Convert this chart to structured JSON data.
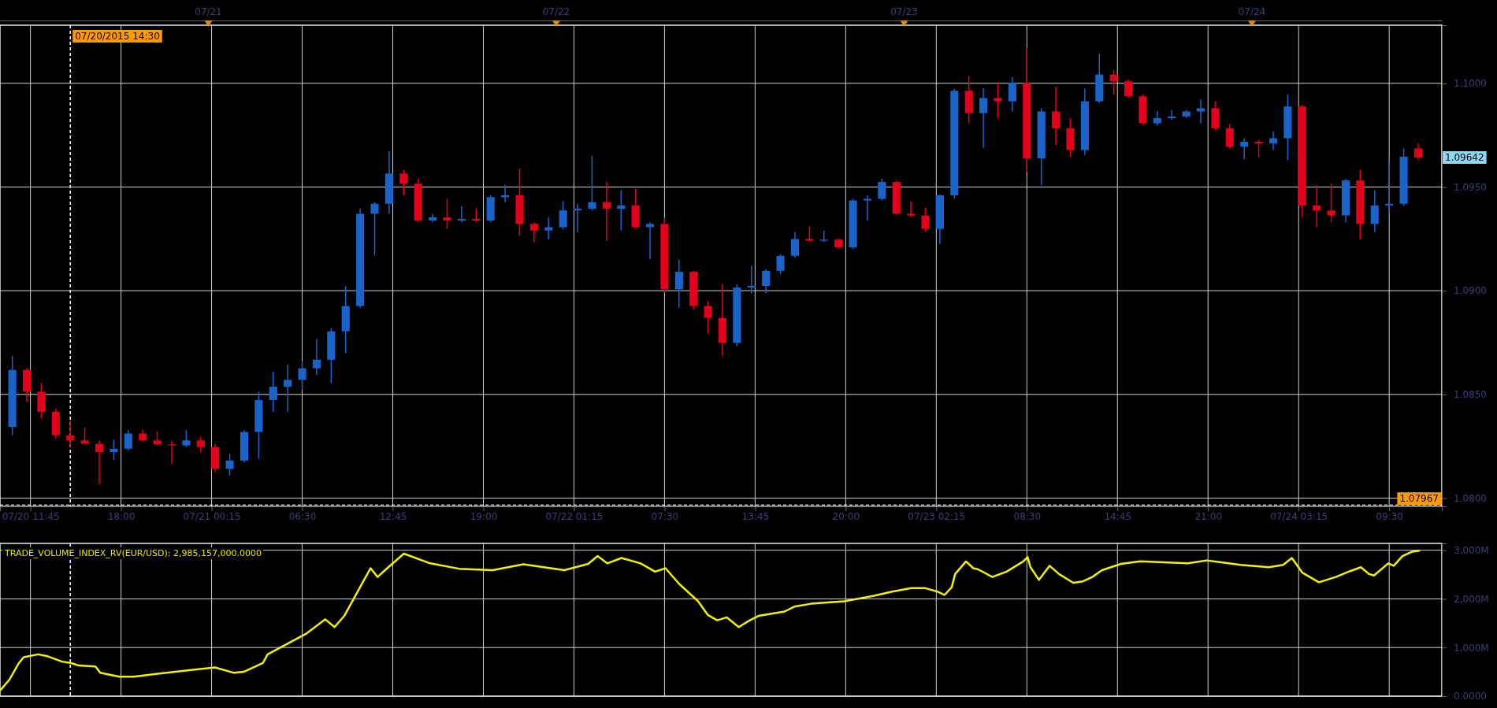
{
  "chart_data": [
    {
      "type": "candlestick",
      "x": [
        "2015-07-20T10:30",
        "2015-07-20T11:30",
        "2015-07-20T12:30",
        "2015-07-20T13:30",
        "2015-07-20T14:30",
        "2015-07-20T15:30",
        "2015-07-20T16:30",
        "2015-07-20T17:30",
        "2015-07-20T18:30",
        "2015-07-20T19:30",
        "2015-07-20T20:30",
        "2015-07-20T21:30",
        "2015-07-20T22:30",
        "2015-07-20T23:30",
        "2015-07-21T00:30",
        "2015-07-21T01:30",
        "2015-07-21T02:30",
        "2015-07-21T03:30",
        "2015-07-21T04:30",
        "2015-07-21T05:30",
        "2015-07-21T06:30",
        "2015-07-21T07:30",
        "2015-07-21T08:30",
        "2015-07-21T09:30",
        "2015-07-21T10:30",
        "2015-07-21T11:30",
        "2015-07-21T12:30",
        "2015-07-21T13:30",
        "2015-07-21T14:30",
        "2015-07-21T15:30",
        "2015-07-21T16:30",
        "2015-07-21T17:30",
        "2015-07-21T18:30",
        "2015-07-21T19:30",
        "2015-07-21T20:30",
        "2015-07-21T21:30",
        "2015-07-21T22:30",
        "2015-07-21T23:30",
        "2015-07-22T00:30",
        "2015-07-22T01:30",
        "2015-07-22T02:30",
        "2015-07-22T03:30",
        "2015-07-22T04:30",
        "2015-07-22T05:30",
        "2015-07-22T06:30",
        "2015-07-22T07:30",
        "2015-07-22T08:30",
        "2015-07-22T09:30",
        "2015-07-22T10:30",
        "2015-07-22T11:30",
        "2015-07-22T12:30",
        "2015-07-22T13:30",
        "2015-07-22T14:30",
        "2015-07-22T15:30",
        "2015-07-22T16:30",
        "2015-07-22T17:30",
        "2015-07-22T18:30",
        "2015-07-22T19:30",
        "2015-07-22T20:30",
        "2015-07-22T21:30",
        "2015-07-22T22:30",
        "2015-07-22T23:30",
        "2015-07-23T00:30",
        "2015-07-23T01:30",
        "2015-07-23T02:30",
        "2015-07-23T03:30",
        "2015-07-23T04:30",
        "2015-07-23T05:30",
        "2015-07-23T06:30",
        "2015-07-23T07:30",
        "2015-07-23T08:30",
        "2015-07-23T09:30",
        "2015-07-23T10:30",
        "2015-07-23T11:30",
        "2015-07-23T12:30",
        "2015-07-23T13:30",
        "2015-07-23T14:30",
        "2015-07-23T15:30",
        "2015-07-23T16:30",
        "2015-07-23T17:30",
        "2015-07-23T18:30",
        "2015-07-23T19:30",
        "2015-07-23T20:30",
        "2015-07-23T21:30",
        "2015-07-23T22:30",
        "2015-07-23T23:30",
        "2015-07-24T00:30",
        "2015-07-24T01:30",
        "2015-07-24T02:30",
        "2015-07-24T03:30",
        "2015-07-24T04:30",
        "2015-07-24T05:30",
        "2015-07-24T06:30",
        "2015-07-24T07:30",
        "2015-07-24T08:30",
        "2015-07-24T09:30",
        "2015-07-24T10:30",
        "2015-07-24T11:30"
      ],
      "series": [
        {
          "colors": [
            "#1a63c9",
            "#e2001a",
            "#e2001a",
            "#e2001a",
            "#e2001a",
            "#e2001a",
            "#e2001a",
            "#1a63c9",
            "#1a63c9",
            "#e2001a",
            "#e2001a",
            "#e2001a",
            "#1a63c9",
            "#e2001a",
            "#e2001a",
            "#1a63c9",
            "#1a63c9",
            "#1a63c9",
            "#1a63c9",
            "#1a63c9",
            "#1a63c9",
            "#1a63c9",
            "#1a63c9",
            "#1a63c9",
            "#1a63c9",
            "#1a63c9",
            "#1a63c9",
            "#e2001a",
            "#e2001a",
            "#1a63c9",
            "#e2001a",
            "#1a63c9",
            "#e2001a",
            "#1a63c9",
            "#1a63c9",
            "#e2001a",
            "#e2001a",
            "#1a63c9",
            "#1a63c9",
            "#1a63c9",
            "#1a63c9",
            "#e2001a",
            "#1a63c9",
            "#e2001a",
            "#1a63c9",
            "#e2001a",
            "#1a63c9",
            "#e2001a",
            "#e2001a",
            "#e2001a",
            "#1a63c9",
            "#1a63c9",
            "#1a63c9",
            "#1a63c9",
            "#1a63c9",
            "#e2001a",
            "#1a63c9",
            "#e2001a",
            "#1a63c9",
            "#1a63c9",
            "#1a63c9",
            "#e2001a",
            "#e2001a",
            "#e2001a",
            "#1a63c9",
            "#1a63c9",
            "#e2001a",
            "#1a63c9",
            "#e2001a",
            "#1a63c9",
            "#e2001a",
            "#1a63c9",
            "#e2001a",
            "#e2001a",
            "#1a63c9",
            "#1a63c9",
            "#e2001a",
            "#e2001a",
            "#e2001a",
            "#1a63c9",
            "#1a63c9",
            "#1a63c9",
            "#1a63c9",
            "#e2001a",
            "#e2001a",
            "#1a63c9",
            "#e2001a",
            "#1a63c9",
            "#1a63c9",
            "#e2001a",
            "#e2001a",
            "#e2001a",
            "#1a63c9",
            "#e2001a",
            "#1a63c9",
            "#1a63c9",
            "#1a63c9",
            "#e2001a"
          ],
          "ohlc": [
            [
              1.08343,
              1.08686,
              1.08303,
              1.08618
            ],
            [
              1.08618,
              1.08626,
              1.08465,
              1.08513
            ],
            [
              1.08513,
              1.08554,
              1.08384,
              1.08416
            ],
            [
              1.08416,
              1.08432,
              1.08287,
              1.08303
            ],
            [
              1.08303,
              1.08376,
              1.08246,
              1.08278
            ],
            [
              1.08278,
              1.0834,
              1.08259,
              1.08262
            ],
            [
              1.08262,
              1.08278,
              1.08068,
              1.08222
            ],
            [
              1.08222,
              1.08282,
              1.08185,
              1.08238
            ],
            [
              1.08238,
              1.08327,
              1.0823,
              1.08311
            ],
            [
              1.08311,
              1.0833,
              1.0827,
              1.08278
            ],
            [
              1.08278,
              1.08322,
              1.08254,
              1.08259
            ],
            [
              1.08259,
              1.08278,
              1.08165,
              1.08254
            ],
            [
              1.08254,
              1.08327,
              1.08246,
              1.08278
            ],
            [
              1.08278,
              1.08295,
              1.08222,
              1.08246
            ],
            [
              1.08246,
              1.08262,
              1.08125,
              1.08141
            ],
            [
              1.08141,
              1.08214,
              1.08109,
              1.08181
            ],
            [
              1.08181,
              1.08327,
              1.08173,
              1.08319
            ],
            [
              1.08319,
              1.08513,
              1.08189,
              1.08473
            ],
            [
              1.08473,
              1.0861,
              1.08416,
              1.08537
            ],
            [
              1.08537,
              1.08643,
              1.08416,
              1.0857
            ],
            [
              1.0857,
              1.08659,
              1.08521,
              1.08626
            ],
            [
              1.08626,
              1.08767,
              1.08594,
              1.08667
            ],
            [
              1.08667,
              1.0882,
              1.08554,
              1.08804
            ],
            [
              1.08804,
              1.09023,
              1.08699,
              1.08926
            ],
            [
              1.08926,
              1.09395,
              1.08918,
              1.09371
            ],
            [
              1.09371,
              1.09427,
              1.09168,
              1.09419
            ],
            [
              1.09419,
              1.09673,
              1.09371,
              1.09565
            ],
            [
              1.09565,
              1.09581,
              1.0946,
              1.09516
            ],
            [
              1.09516,
              1.0954,
              1.0933,
              1.09338
            ],
            [
              1.09338,
              1.09371,
              1.0933,
              1.09354
            ],
            [
              1.09354,
              1.09443,
              1.09298,
              1.09338
            ],
            [
              1.09338,
              1.09408,
              1.0933,
              1.09346
            ],
            [
              1.09346,
              1.09395,
              1.0933,
              1.09338
            ],
            [
              1.09338,
              1.0946,
              1.0933,
              1.09451
            ],
            [
              1.09451,
              1.09511,
              1.09427,
              1.0946
            ],
            [
              1.0946,
              1.09589,
              1.09265,
              1.09322
            ],
            [
              1.09322,
              1.0933,
              1.09233,
              1.0929
            ],
            [
              1.0929,
              1.09354,
              1.09246,
              1.09306
            ],
            [
              1.09306,
              1.09432,
              1.09295,
              1.09387
            ],
            [
              1.09387,
              1.09419,
              1.09282,
              1.09395
            ],
            [
              1.09395,
              1.09651,
              1.09387,
              1.09427
            ],
            [
              1.09427,
              1.09524,
              1.09241,
              1.09395
            ],
            [
              1.09395,
              1.09484,
              1.0929,
              1.09411
            ],
            [
              1.09411,
              1.09492,
              1.09298,
              1.09306
            ],
            [
              1.09306,
              1.0933,
              1.09152,
              1.09322
            ],
            [
              1.09322,
              1.0935,
              1.0899,
              1.09007
            ],
            [
              1.09007,
              1.09149,
              1.08918,
              1.09091
            ],
            [
              1.09091,
              1.09096,
              1.08909,
              1.08926
            ],
            [
              1.08926,
              1.0895,
              1.08796,
              1.08869
            ],
            [
              1.08869,
              1.09031,
              1.08683,
              1.08748
            ],
            [
              1.08748,
              1.09031,
              1.08732,
              1.09015
            ],
            [
              1.09015,
              1.0912,
              1.08987,
              1.09023
            ],
            [
              1.09023,
              1.09104,
              1.08987,
              1.09096
            ],
            [
              1.09096,
              1.09176,
              1.09079,
              1.09168
            ],
            [
              1.09168,
              1.09282,
              1.0916,
              1.09249
            ],
            [
              1.09249,
              1.09311,
              1.09236,
              1.09241
            ],
            [
              1.09241,
              1.0929,
              1.09236,
              1.09246
            ],
            [
              1.09246,
              1.09252,
              1.09204,
              1.09209
            ],
            [
              1.09209,
              1.09443,
              1.09201,
              1.09435
            ],
            [
              1.09435,
              1.0946,
              1.09338,
              1.09443
            ],
            [
              1.09443,
              1.0954,
              1.09435,
              1.09524
            ],
            [
              1.09524,
              1.09532,
              1.09363,
              1.09371
            ],
            [
              1.09371,
              1.0943,
              1.09354,
              1.09363
            ],
            [
              1.09363,
              1.09398,
              1.09282,
              1.09298
            ],
            [
              1.09298,
              1.09463,
              1.09225,
              1.0946
            ],
            [
              1.0946,
              1.09974,
              1.09443,
              1.09964
            ],
            [
              1.09964,
              1.10034,
              1.09807,
              1.09856
            ],
            [
              1.09856,
              1.09977,
              1.09689,
              1.09929
            ],
            [
              1.09929,
              1.10002,
              1.09832,
              1.09913
            ],
            [
              1.09913,
              1.10029,
              1.09864,
              1.10002
            ],
            [
              1.10002,
              1.10171,
              1.09573,
              1.09638
            ],
            [
              1.09638,
              1.0988,
              1.09508,
              1.09864
            ],
            [
              1.09864,
              1.09985,
              1.09702,
              1.09783
            ],
            [
              1.09783,
              1.09832,
              1.09646,
              1.09678
            ],
            [
              1.09678,
              1.09974,
              1.09654,
              1.09913
            ],
            [
              1.09913,
              1.10142,
              1.09905,
              1.10042
            ],
            [
              1.10042,
              1.10063,
              1.09945,
              1.1001
            ],
            [
              1.1001,
              1.10018,
              1.09929,
              1.09937
            ],
            [
              1.09937,
              1.09945,
              1.09799,
              1.09807
            ],
            [
              1.09807,
              1.09867,
              1.09796,
              1.09832
            ],
            [
              1.09832,
              1.09872,
              1.09824,
              1.0984
            ],
            [
              1.0984,
              1.09872,
              1.09832,
              1.09864
            ],
            [
              1.09864,
              1.09921,
              1.09807,
              1.0988
            ],
            [
              1.0988,
              1.09913,
              1.09775,
              1.09783
            ],
            [
              1.09783,
              1.09803,
              1.09686,
              1.09694
            ],
            [
              1.09694,
              1.09735,
              1.09634,
              1.09718
            ],
            [
              1.09718,
              1.09727,
              1.09641,
              1.0971
            ],
            [
              1.0971,
              1.09767,
              1.09678,
              1.09735
            ],
            [
              1.09735,
              1.09945,
              1.09629,
              1.09888
            ],
            [
              1.09888,
              1.09896,
              1.09354,
              1.09411
            ],
            [
              1.09411,
              1.09508,
              1.09306,
              1.09387
            ],
            [
              1.09387,
              1.09516,
              1.0933,
              1.09363
            ],
            [
              1.09363,
              1.0954,
              1.0933,
              1.09532
            ],
            [
              1.09532,
              1.09581,
              1.09246,
              1.09322
            ],
            [
              1.09322,
              1.09484,
              1.09282,
              1.09411
            ],
            [
              1.09411,
              1.09621,
              1.09375,
              1.09419
            ],
            [
              1.09419,
              1.09686,
              1.09408,
              1.09646
            ],
            [
              1.09686,
              1.0971,
              1.09629,
              1.09642
            ]
          ]
        }
      ],
      "xlim": [
        "2015-07-20T09:39",
        "2015-07-24T13:08"
      ],
      "ylim": [
        1.0796,
        1.1028
      ],
      "xticks": [
        {
          "value": "2015-07-20T11:45",
          "label": "07/20 11:45"
        },
        {
          "value": "2015-07-20T18:00",
          "label": "18:00"
        },
        {
          "value": "2015-07-21T00:15",
          "label": "07/21 00:15"
        },
        {
          "value": "2015-07-21T06:30",
          "label": "06:30"
        },
        {
          "value": "2015-07-21T12:45",
          "label": "12:45"
        },
        {
          "value": "2015-07-21T19:00",
          "label": "19:00"
        },
        {
          "value": "2015-07-22T01:15",
          "label": "07/22 01:15"
        },
        {
          "value": "2015-07-22T07:30",
          "label": "07:30"
        },
        {
          "value": "2015-07-22T13:45",
          "label": "13:45"
        },
        {
          "value": "2015-07-22T20:00",
          "label": "20:00"
        },
        {
          "value": "2015-07-23T02:15",
          "label": "07/23 02:15"
        },
        {
          "value": "2015-07-23T08:30",
          "label": "08:30"
        },
        {
          "value": "2015-07-23T14:45",
          "label": "14:45"
        },
        {
          "value": "2015-07-23T21:00",
          "label": "21:00"
        },
        {
          "value": "2015-07-24T03:15",
          "label": "07/24 03:15"
        },
        {
          "value": "2015-07-24T09:30",
          "label": "09:30"
        }
      ],
      "yticks": [
        {
          "value": 1.08,
          "label": "1.0800"
        },
        {
          "value": 1.085,
          "label": "1.0850"
        },
        {
          "value": 1.09,
          "label": "1.0900"
        },
        {
          "value": 1.095,
          "label": "1.0950"
        },
        {
          "value": 1.1,
          "label": "1.1000"
        }
      ],
      "x2lim": [
        "2015-07-20T09:39",
        "2015-07-24T13:08"
      ],
      "x2ticks": [
        {
          "value": "2015-07-21",
          "label": "07/21"
        },
        {
          "value": "2015-07-22",
          "label": "07/22"
        },
        {
          "value": "2015-07-23",
          "label": "07/23"
        },
        {
          "value": "2015-07-24",
          "label": "07/24"
        }
      ],
      "grid": true,
      "ref_lines": [
        {
          "axis": "x",
          "value": "2015-07-20T14:30",
          "label": "07/20/2015 14:30",
          "color": "#ffffff",
          "line_style": "dashed"
        },
        {
          "axis": "y",
          "value": 1.07967,
          "label": "1.07967",
          "color": "#ffffff",
          "line_style": "dashed"
        }
      ],
      "annotations": [
        "1.09642"
      ]
    },
    {
      "type": "line",
      "title": "TRADE_VOLUME_INDEX_RV(EUR/USD): 2,985,157,000.0000",
      "series": [
        {
          "color": "#f2f200",
          "x": [
            "2015-07-20T09:42",
            "2015-07-20T10:18",
            "2015-07-20T10:57",
            "2015-07-20T11:17",
            "2015-07-20T12:17",
            "2015-07-20T12:56",
            "2015-07-20T13:56",
            "2015-07-20T14:35",
            "2015-07-20T15:05",
            "2015-07-20T16:14",
            "2015-07-20T16:34",
            "2015-07-20T17:53",
            "2015-07-20T18:53",
            "2015-07-20T20:32",
            "2015-07-20T22:50",
            "2015-07-21T00:29",
            "2015-07-21T01:48",
            "2015-07-21T02:28",
            "2015-07-21T03:47",
            "2015-07-21T04:07",
            "2015-07-21T05:26",
            "2015-07-21T06:45",
            "2015-07-21T08:05",
            "2015-07-21T08:44",
            "2015-07-21T09:24",
            "2015-07-21T10:43",
            "2015-07-21T11:13",
            "2015-07-21T11:42",
            "2015-07-21T12:22",
            "2015-07-21T13:31",
            "2015-07-21T15:20",
            "2015-07-21T17:19",
            "2015-07-21T19:38",
            "2015-07-21T21:46",
            "2015-07-22T00:35",
            "2015-07-22T02:14",
            "2015-07-22T02:53",
            "2015-07-22T03:33",
            "2015-07-22T04:32",
            "2015-07-22T05:51",
            "2015-07-22T06:51",
            "2015-07-22T07:34",
            "2015-07-22T08:30",
            "2015-07-22T09:49",
            "2015-07-22T10:29",
            "2015-07-22T11:08",
            "2015-07-22T11:48",
            "2015-07-22T12:37",
            "2015-07-22T13:23",
            "2015-07-22T13:59",
            "2015-07-22T15:47",
            "2015-07-22T16:27",
            "2015-07-22T17:36",
            "2015-07-22T19:54",
            "2015-07-22T21:53",
            "2015-07-22T23:12",
            "2015-07-23T00:31",
            "2015-07-23T01:30",
            "2015-07-23T02:19",
            "2015-07-23T02:49",
            "2015-07-23T03:19",
            "2015-07-23T03:33",
            "2015-07-23T04:18",
            "2015-07-23T04:48",
            "2015-07-23T05:07",
            "2015-07-23T06:07",
            "2015-07-23T07:06",
            "2015-07-23T08:15",
            "2015-07-23T08:33",
            "2015-07-23T08:45",
            "2015-07-23T09:20",
            "2015-07-23T10:04",
            "2015-07-23T10:43",
            "2015-07-23T11:42",
            "2015-07-23T12:22",
            "2015-07-23T13:01",
            "2015-07-23T13:41",
            "2015-07-23T15:00",
            "2015-07-23T16:19",
            "2015-07-23T17:58",
            "2015-07-23T19:36",
            "2015-07-23T20:55",
            "2015-07-23T21:55",
            "2015-07-23T23:14",
            "2015-07-24T01:12",
            "2015-07-24T02:11",
            "2015-07-24T02:47",
            "2015-07-24T03:30",
            "2015-07-24T04:39",
            "2015-07-24T05:49",
            "2015-07-24T06:48",
            "2015-07-24T07:33",
            "2015-07-24T08:07",
            "2015-07-24T08:27",
            "2015-07-24T09:26",
            "2015-07-24T09:49",
            "2015-07-24T10:25",
            "2015-07-24T11:05",
            "2015-07-24T11:34"
          ],
          "values": [
            130,
            340,
            680,
            800,
            860,
            820,
            710,
            680,
            630,
            610,
            480,
            400,
            400,
            460,
            540,
            590,
            480,
            500,
            680,
            860,
            1070,
            1280,
            1580,
            1420,
            1650,
            2360,
            2630,
            2450,
            2630,
            2930,
            2730,
            2620,
            2590,
            2710,
            2590,
            2720,
            2880,
            2730,
            2840,
            2730,
            2560,
            2630,
            2310,
            1950,
            1670,
            1560,
            1620,
            1420,
            1560,
            1650,
            1740,
            1840,
            1900,
            1950,
            2060,
            2150,
            2220,
            2220,
            2150,
            2080,
            2240,
            2510,
            2770,
            2630,
            2610,
            2450,
            2560,
            2770,
            2860,
            2650,
            2390,
            2680,
            2510,
            2330,
            2360,
            2450,
            2590,
            2720,
            2770,
            2750,
            2730,
            2790,
            2750,
            2700,
            2650,
            2700,
            2840,
            2540,
            2340,
            2450,
            2570,
            2650,
            2510,
            2480,
            2730,
            2680,
            2880,
            2970,
            2990
          ]
        }
      ],
      "xlim": [
        "2015-07-20T09:39",
        "2015-07-24T13:08"
      ],
      "ylim": [
        0,
        3140
      ],
      "xticks": [
        {
          "value": "2015-07-20T11:45",
          "label": null
        },
        {
          "value": "2015-07-20T18:00",
          "label": null
        },
        {
          "value": "2015-07-21T00:15",
          "label": null
        },
        {
          "value": "2015-07-21T06:30",
          "label": null
        },
        {
          "value": "2015-07-21T12:45",
          "label": null
        },
        {
          "value": "2015-07-21T19:00",
          "label": null
        },
        {
          "value": "2015-07-22T01:15",
          "label": null
        },
        {
          "value": "2015-07-22T07:30",
          "label": null
        },
        {
          "value": "2015-07-22T13:45",
          "label": null
        },
        {
          "value": "2015-07-22T20:00",
          "label": null
        },
        {
          "value": "2015-07-23T02:15",
          "label": null
        },
        {
          "value": "2015-07-23T08:30",
          "label": null
        },
        {
          "value": "2015-07-23T14:45",
          "label": null
        },
        {
          "value": "2015-07-23T21:00",
          "label": null
        },
        {
          "value": "2015-07-24T03:15",
          "label": null
        },
        {
          "value": "2015-07-24T09:30",
          "label": null
        }
      ],
      "yticks": [
        {
          "value": 0,
          "label": "0.0000"
        },
        {
          "value": 1000,
          "label": "1,000M"
        },
        {
          "value": 2000,
          "label": "2,000M"
        },
        {
          "value": 3000,
          "label": "3,000M"
        }
      ],
      "grid": true,
      "tick_labels": "y",
      "ref_lines": [
        {
          "axis": "x",
          "value": "2015-07-20T14:30",
          "color": "#ffffff",
          "line_style": "dashed"
        }
      ]
    }
  ]
}
